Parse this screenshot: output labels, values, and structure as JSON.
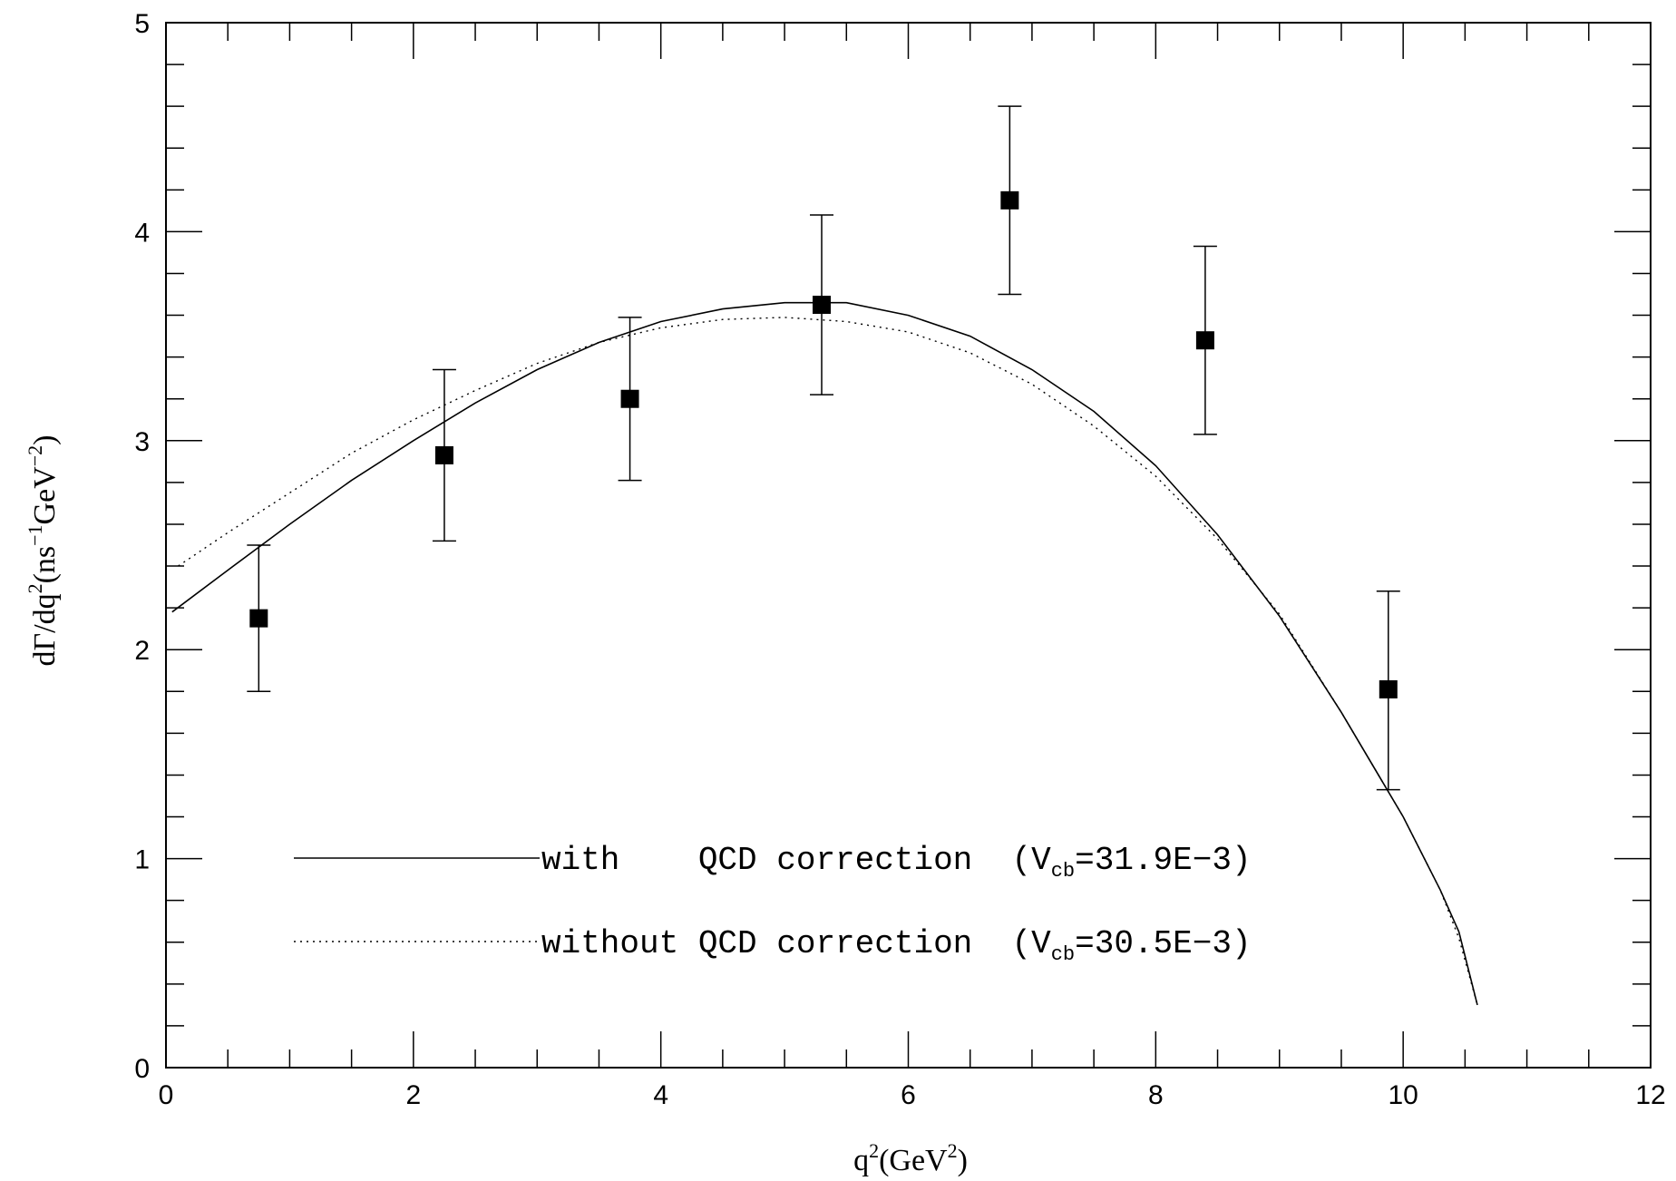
{
  "chart_data": {
    "type": "scatter",
    "title": "",
    "xlabel": {
      "base": "q",
      "sup": "2",
      "unit_open": "(GeV",
      "unit_sup": "2",
      "unit_close": ")"
    },
    "ylabel": {
      "text": "dΓ/dq",
      "sup1": "2",
      "paren": "(ns",
      "sup2": "−1",
      "mid": "GeV",
      "sup3": "−2",
      "close": ")"
    },
    "xlim": [
      0,
      12
    ],
    "ylim": [
      0,
      5
    ],
    "x_ticks": [
      "0",
      "2",
      "4",
      "6",
      "8",
      "10",
      "12"
    ],
    "y_ticks": [
      "0",
      "1",
      "2",
      "3",
      "4",
      "5"
    ],
    "grid": false,
    "data_points": [
      {
        "x": 0.75,
        "y": 2.15,
        "lo": 1.8,
        "hi": 2.5
      },
      {
        "x": 2.25,
        "y": 2.93,
        "lo": 2.52,
        "hi": 3.34
      },
      {
        "x": 3.75,
        "y": 3.2,
        "lo": 2.81,
        "hi": 3.59
      },
      {
        "x": 5.3,
        "y": 3.65,
        "lo": 3.22,
        "hi": 4.08
      },
      {
        "x": 6.82,
        "y": 4.15,
        "lo": 3.7,
        "hi": 4.6
      },
      {
        "x": 8.4,
        "y": 3.48,
        "lo": 3.03,
        "hi": 3.93
      },
      {
        "x": 9.88,
        "y": 1.81,
        "lo": 1.33,
        "hi": 2.28
      }
    ],
    "series": [
      {
        "style": "solid",
        "legend_prefix": "with    QCD correction  (V",
        "legend_sub": "cb",
        "legend_suffix": "=31.9E−3)",
        "x": [
          0.05,
          0.5,
          1.0,
          1.5,
          2.0,
          2.5,
          3.0,
          3.5,
          4.0,
          4.5,
          5.0,
          5.5,
          6.0,
          6.5,
          7.0,
          7.5,
          8.0,
          8.5,
          9.0,
          9.5,
          10.0,
          10.3,
          10.45,
          10.6
        ],
        "y": [
          2.18,
          2.38,
          2.6,
          2.81,
          3.0,
          3.18,
          3.34,
          3.47,
          3.57,
          3.63,
          3.66,
          3.66,
          3.6,
          3.5,
          3.34,
          3.14,
          2.88,
          2.55,
          2.16,
          1.7,
          1.2,
          0.85,
          0.65,
          0.3
        ]
      },
      {
        "style": "dotted",
        "legend_prefix": "without QCD correction  (V",
        "legend_sub": "cb",
        "legend_suffix": "=30.5E−3)",
        "x": [
          0.1,
          0.5,
          1.0,
          1.5,
          2.0,
          2.5,
          3.0,
          3.5,
          4.0,
          4.5,
          5.0,
          5.5,
          6.0,
          6.5,
          7.0,
          7.5,
          8.0,
          8.5,
          9.0,
          9.5,
          10.0,
          10.3,
          10.45,
          10.6
        ],
        "y": [
          2.4,
          2.56,
          2.75,
          2.94,
          3.1,
          3.24,
          3.37,
          3.47,
          3.54,
          3.58,
          3.59,
          3.57,
          3.52,
          3.42,
          3.27,
          3.07,
          2.83,
          2.53,
          2.17,
          1.7,
          1.2,
          0.85,
          0.62,
          0.3
        ]
      }
    ]
  }
}
